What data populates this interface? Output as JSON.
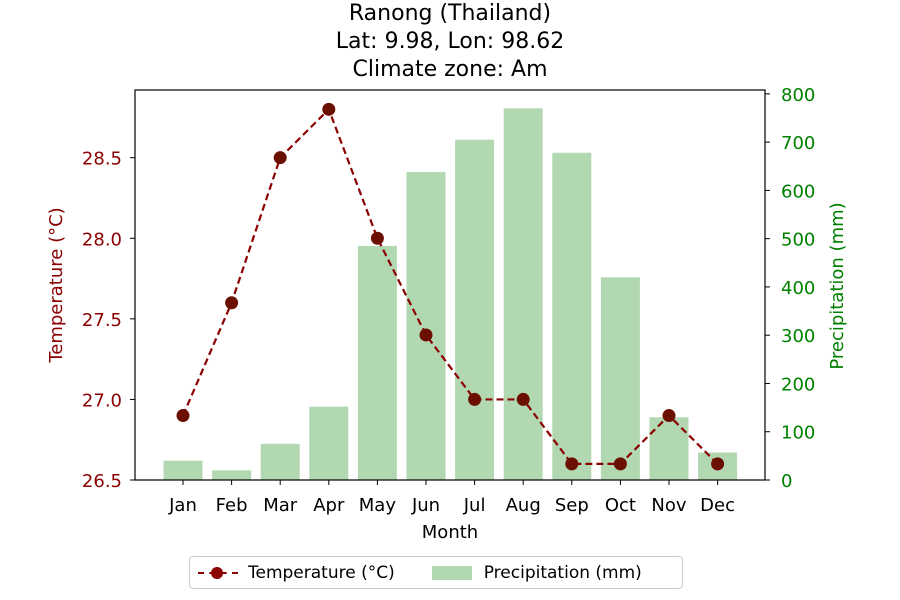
{
  "title_lines": [
    "Ranong (Thailand)",
    "Lat: 9.98, Lon: 98.62",
    "Climate zone: Am"
  ],
  "chart_data": {
    "type": "bar+line",
    "categories": [
      "Jan",
      "Feb",
      "Mar",
      "Apr",
      "May",
      "Jun",
      "Jul",
      "Aug",
      "Sep",
      "Oct",
      "Nov",
      "Dec"
    ],
    "series": [
      {
        "name": "Temperature (°C)",
        "type": "line",
        "axis": "left",
        "values": [
          26.9,
          27.6,
          28.5,
          28.8,
          28.0,
          27.4,
          27.0,
          27.0,
          26.6,
          26.6,
          26.9,
          26.6
        ]
      },
      {
        "name": "Precipitation (mm)",
        "type": "bar",
        "axis": "right",
        "values": [
          40,
          20,
          75,
          152,
          485,
          638,
          705,
          770,
          678,
          420,
          130,
          57
        ]
      }
    ],
    "xlabel": "Month",
    "ylabel_left": "Temperature (°C)",
    "ylabel_right": "Precipitation (mm)",
    "ylim_left": [
      26.5,
      28.92
    ],
    "ylim_right": [
      0,
      808
    ],
    "yticks_left": [
      "26.5",
      "27.0",
      "27.5",
      "28.0",
      "28.5"
    ],
    "yticks_right": [
      "0",
      "100",
      "200",
      "300",
      "400",
      "500",
      "600",
      "700",
      "800"
    ],
    "grid": false,
    "legend_position": "bottom-center",
    "colors": {
      "temperature": "#8b0000",
      "precipitation": "#b2d8b2",
      "right_axis": "#008000"
    }
  },
  "legend": {
    "temperature_label": "Temperature (°C)",
    "precipitation_label": "Precipitation (mm)"
  }
}
